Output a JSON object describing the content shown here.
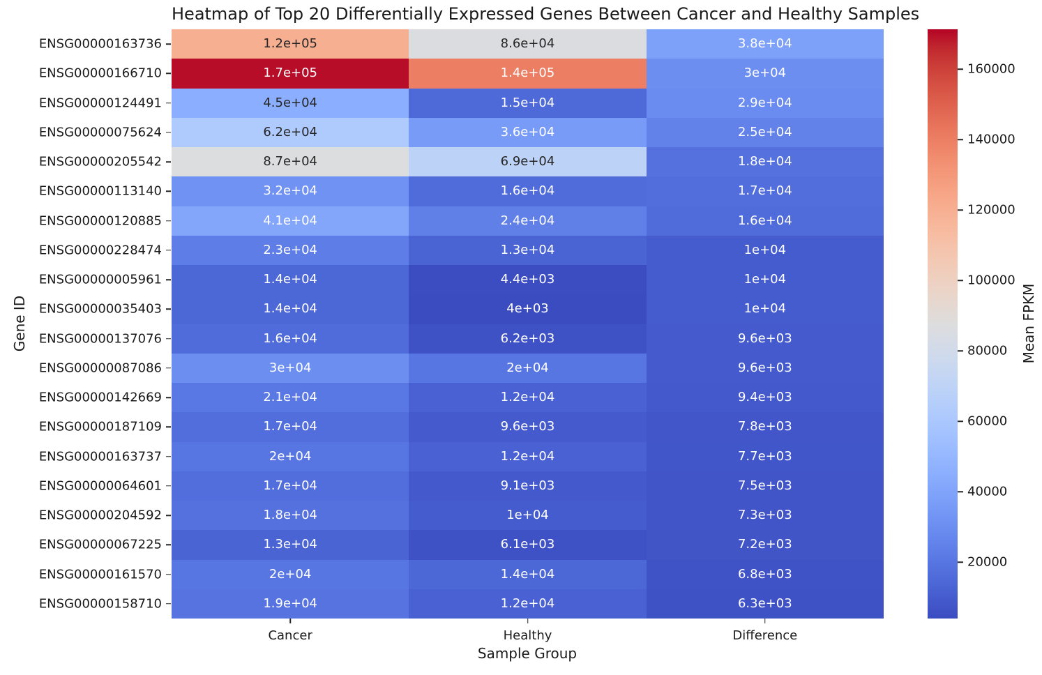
{
  "chart_data": {
    "type": "heatmap",
    "title": "Heatmap of Top 20 Differentially Expressed Genes Between Cancer and Healthy Samples",
    "xlabel": "Sample Group",
    "ylabel": "Gene ID",
    "colorbar_label": "Mean FPKM",
    "colormap": "coolwarm",
    "legend_position": "right-colorbar",
    "grid": false,
    "columns": [
      "Cancer",
      "Healthy",
      "Difference"
    ],
    "genes": [
      "ENSG00000163736",
      "ENSG00000166710",
      "ENSG00000124491",
      "ENSG00000075624",
      "ENSG00000205542",
      "ENSG00000113140",
      "ENSG00000120885",
      "ENSG00000228474",
      "ENSG00000005961",
      "ENSG00000035403",
      "ENSG00000137076",
      "ENSG00000087086",
      "ENSG00000142669",
      "ENSG00000187109",
      "ENSG00000163737",
      "ENSG00000064601",
      "ENSG00000204592",
      "ENSG00000067225",
      "ENSG00000161570",
      "ENSG00000158710"
    ],
    "values": [
      [
        120000,
        86000,
        38000
      ],
      [
        170000,
        140000,
        30000
      ],
      [
        45000,
        15000,
        29000
      ],
      [
        62000,
        36000,
        25000
      ],
      [
        87000,
        69000,
        18000
      ],
      [
        32000,
        16000,
        17000
      ],
      [
        41000,
        24000,
        16000
      ],
      [
        23000,
        13000,
        10000
      ],
      [
        14000,
        4400,
        10000
      ],
      [
        14000,
        4000,
        10000
      ],
      [
        16000,
        6200,
        9600
      ],
      [
        30000,
        20000,
        9600
      ],
      [
        21000,
        12000,
        9400
      ],
      [
        17000,
        9600,
        7800
      ],
      [
        20000,
        12000,
        7700
      ],
      [
        17000,
        9100,
        7500
      ],
      [
        18000,
        10000,
        7300
      ],
      [
        13000,
        6100,
        7200
      ],
      [
        20000,
        14000,
        6800
      ],
      [
        19000,
        12000,
        6300
      ]
    ],
    "cell_labels": [
      [
        "1.2e+05",
        "8.6e+04",
        "3.8e+04"
      ],
      [
        "1.7e+05",
        "1.4e+05",
        "3e+04"
      ],
      [
        "4.5e+04",
        "1.5e+04",
        "2.9e+04"
      ],
      [
        "6.2e+04",
        "3.6e+04",
        "2.5e+04"
      ],
      [
        "8.7e+04",
        "6.9e+04",
        "1.8e+04"
      ],
      [
        "3.2e+04",
        "1.6e+04",
        "1.7e+04"
      ],
      [
        "4.1e+04",
        "2.4e+04",
        "1.6e+04"
      ],
      [
        "2.3e+04",
        "1.3e+04",
        "1e+04"
      ],
      [
        "1.4e+04",
        "4.4e+03",
        "1e+04"
      ],
      [
        "1.4e+04",
        "4e+03",
        "1e+04"
      ],
      [
        "1.6e+04",
        "6.2e+03",
        "9.6e+03"
      ],
      [
        "3e+04",
        "2e+04",
        "9.6e+03"
      ],
      [
        "2.1e+04",
        "1.2e+04",
        "9.4e+03"
      ],
      [
        "1.7e+04",
        "9.6e+03",
        "7.8e+03"
      ],
      [
        "2e+04",
        "1.2e+04",
        "7.7e+03"
      ],
      [
        "1.7e+04",
        "9.1e+03",
        "7.5e+03"
      ],
      [
        "1.8e+04",
        "1e+04",
        "7.3e+03"
      ],
      [
        "1.3e+04",
        "6.1e+03",
        "7.2e+03"
      ],
      [
        "2e+04",
        "1.4e+04",
        "6.8e+03"
      ],
      [
        "1.9e+04",
        "1.2e+04",
        "6.3e+03"
      ]
    ],
    "vmin": 4000,
    "vmax": 171300,
    "colorbar_ticks": [
      {
        "value": 20000,
        "label": "20000"
      },
      {
        "value": 40000,
        "label": "40000"
      },
      {
        "value": 60000,
        "label": "60000"
      },
      {
        "value": 80000,
        "label": "80000"
      },
      {
        "value": 100000,
        "label": "100000"
      },
      {
        "value": 120000,
        "label": "120000"
      },
      {
        "value": 140000,
        "label": "140000"
      },
      {
        "value": 160000,
        "label": "160000"
      }
    ],
    "annotation_text_colors": {
      "dark": "#262626",
      "light": "#ffffff"
    },
    "colormap_endpoints": {
      "low": "#3b4cc0",
      "mid": "#dddcdc",
      "high": "#b40426"
    }
  }
}
